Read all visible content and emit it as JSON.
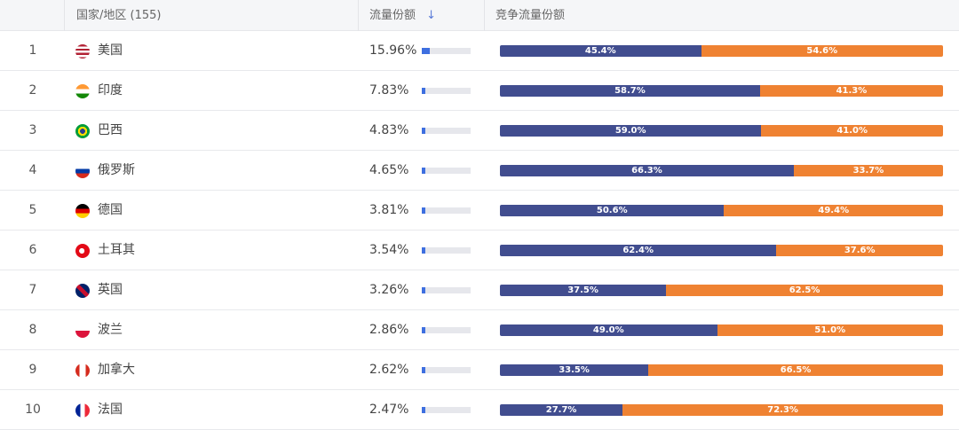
{
  "header": {
    "country": "国家/地区 (155)",
    "share": "流量份额",
    "sort_icon": "arrow-down-icon",
    "competitive": "竞争流量份额"
  },
  "colors": {
    "mini_bar": "#3e6fe0",
    "series_a": "#414d8f",
    "series_b": "#ef8232"
  },
  "rows": [
    {
      "rank": "1",
      "name": "美国",
      "flag": "us",
      "share": "15.96%",
      "share_value": 15.96,
      "a": "45.4%",
      "b": "54.6%",
      "a_value": 45.4
    },
    {
      "rank": "2",
      "name": "印度",
      "flag": "in",
      "share": "7.83%",
      "share_value": 7.83,
      "a": "58.7%",
      "b": "41.3%",
      "a_value": 58.7
    },
    {
      "rank": "3",
      "name": "巴西",
      "flag": "br",
      "share": "4.83%",
      "share_value": 4.83,
      "a": "59.0%",
      "b": "41.0%",
      "a_value": 59.0
    },
    {
      "rank": "4",
      "name": "俄罗斯",
      "flag": "ru",
      "share": "4.65%",
      "share_value": 4.65,
      "a": "66.3%",
      "b": "33.7%",
      "a_value": 66.3
    },
    {
      "rank": "5",
      "name": "德国",
      "flag": "de",
      "share": "3.81%",
      "share_value": 3.81,
      "a": "50.6%",
      "b": "49.4%",
      "a_value": 50.6
    },
    {
      "rank": "6",
      "name": "土耳其",
      "flag": "tr",
      "share": "3.54%",
      "share_value": 3.54,
      "a": "62.4%",
      "b": "37.6%",
      "a_value": 62.4
    },
    {
      "rank": "7",
      "name": "英国",
      "flag": "gb",
      "share": "3.26%",
      "share_value": 3.26,
      "a": "37.5%",
      "b": "62.5%",
      "a_value": 37.5
    },
    {
      "rank": "8",
      "name": "波兰",
      "flag": "pl",
      "share": "2.86%",
      "share_value": 2.86,
      "a": "49.0%",
      "b": "51.0%",
      "a_value": 49.0
    },
    {
      "rank": "9",
      "name": "加拿大",
      "flag": "ca",
      "share": "2.62%",
      "share_value": 2.62,
      "a": "33.5%",
      "b": "66.5%",
      "a_value": 33.5
    },
    {
      "rank": "10",
      "name": "法国",
      "flag": "fr",
      "share": "2.47%",
      "share_value": 2.47,
      "a": "27.7%",
      "b": "72.3%",
      "a_value": 27.7
    }
  ]
}
